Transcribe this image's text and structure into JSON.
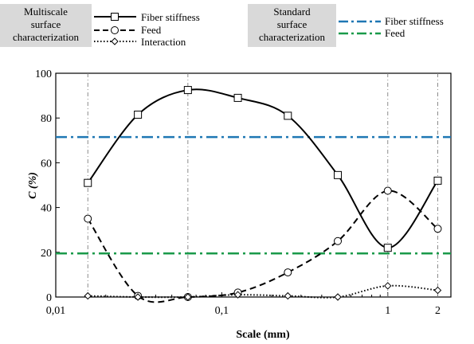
{
  "legend": {
    "multiscale_box": [
      "Multiscale",
      "surface",
      "characterization"
    ],
    "standard_box": [
      "Standard",
      "surface",
      "characterization"
    ],
    "multiscale_entries": [
      "Fiber stiffness",
      "Feed",
      "Interaction"
    ],
    "standard_entries": [
      "Fiber stiffness",
      "Feed"
    ]
  },
  "colors": {
    "standard_fiber": "#1f77b4",
    "standard_feed": "#1a9a4a",
    "multiscale": "#000000",
    "legend_box_bg": "#d9d9d9",
    "vertical_guides": "#7f7f7f"
  },
  "chart_data": {
    "type": "line",
    "xscale": "log",
    "xlabel": "Scale (mm)",
    "ylabel": "C (%)",
    "xlim": [
      0.01,
      2.4
    ],
    "ylim": [
      0,
      100
    ],
    "x_ticks": [
      0.01,
      0.1,
      1,
      2
    ],
    "x_tick_labels": [
      "0,01",
      "0,1",
      "1",
      "2"
    ],
    "y_ticks": [
      0,
      20,
      40,
      60,
      80,
      100
    ],
    "y_tick_labels": [
      "0",
      "20",
      "40",
      "60",
      "80",
      "100"
    ],
    "vertical_guides_at": [
      0.0156,
      0.0625,
      1,
      2
    ],
    "x": [
      0.0156,
      0.03125,
      0.0625,
      0.125,
      0.25,
      0.5,
      1,
      2
    ],
    "series": [
      {
        "name": "Fiber stiffness",
        "group": "Multiscale surface characterization",
        "marker": "square",
        "line": "solid",
        "values": [
          51,
          81.5,
          92.5,
          89,
          81,
          54.5,
          22,
          52
        ]
      },
      {
        "name": "Feed",
        "group": "Multiscale surface characterization",
        "marker": "circle",
        "line": "dashed",
        "values": [
          35,
          0.5,
          0,
          2,
          11,
          25,
          47.5,
          30.5
        ]
      },
      {
        "name": "Interaction",
        "group": "Multiscale surface characterization",
        "marker": "diamond",
        "line": "dotted",
        "values": [
          0.5,
          0,
          0,
          1,
          0.5,
          0,
          5,
          3
        ]
      },
      {
        "name": "Fiber stiffness",
        "group": "Standard surface characterization",
        "line": "dash-dot",
        "constant": 71.5
      },
      {
        "name": "Feed",
        "group": "Standard surface characterization",
        "line": "dash-dot",
        "constant": 19.5
      }
    ],
    "grid": false,
    "legend_position": "top"
  }
}
